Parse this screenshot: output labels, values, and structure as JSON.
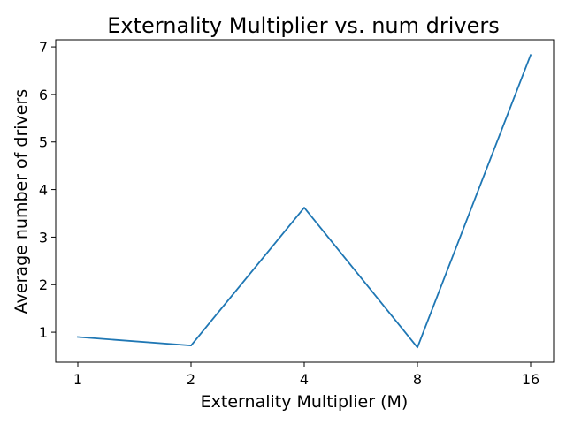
{
  "chart_data": {
    "type": "line",
    "title": "Externality Multiplier vs. num drivers",
    "xlabel": "Externality Multiplier (M)",
    "ylabel": "Average number of drivers",
    "x_scale": "log2",
    "x": [
      1,
      2,
      4,
      8,
      16
    ],
    "x_tick_labels": [
      "1",
      "2",
      "4",
      "8",
      "16"
    ],
    "y_ticks": [
      1,
      2,
      3,
      4,
      5,
      6,
      7
    ],
    "ylim": [
      0.37,
      7.15
    ],
    "grid": false,
    "series": [
      {
        "values": [
          0.9,
          0.72,
          3.62,
          0.68,
          6.83
        ],
        "color": "#1f77b4"
      }
    ]
  }
}
